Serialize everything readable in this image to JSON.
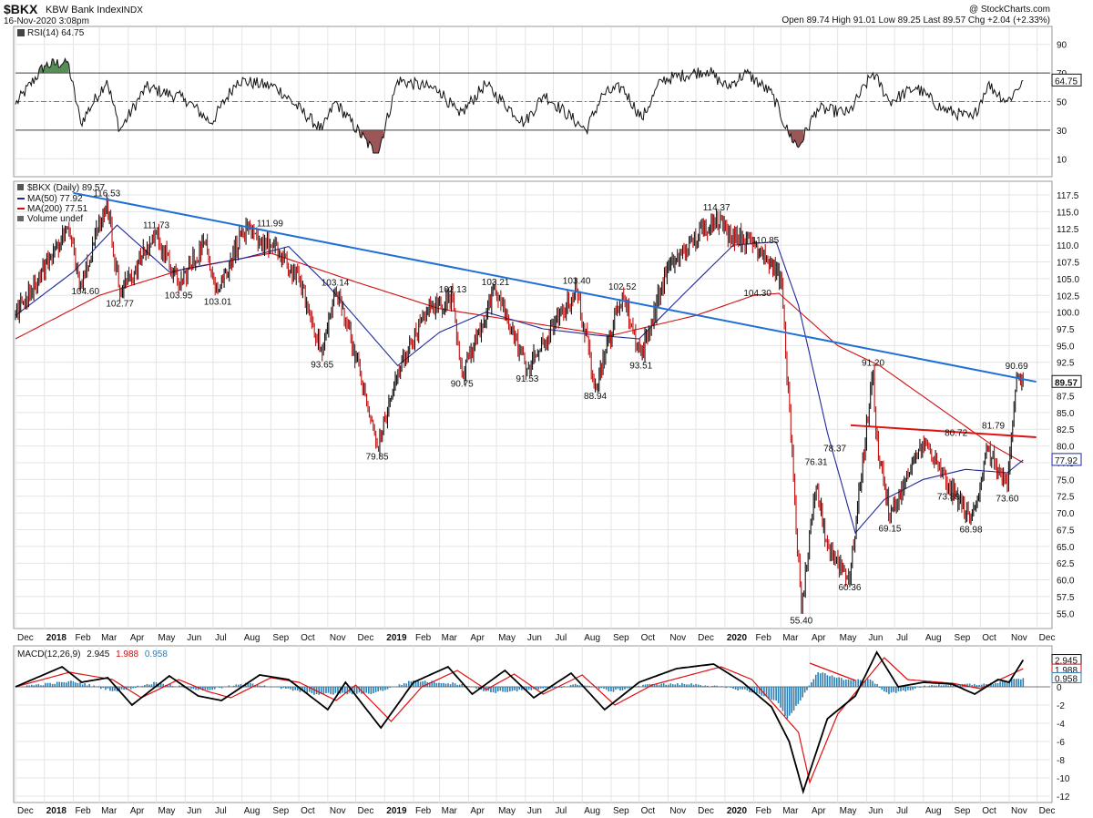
{
  "header": {
    "symbol": "$BKX",
    "name": "KBW Bank Index",
    "exchange": "INDX",
    "date": "16-Nov-2020 3:08pm",
    "watermark": "@ StockCharts.com",
    "quote": "Open 89.74  High 91.01  Low 89.25  Last 89.57  Chg +2.04 (+2.33%)"
  },
  "colors": {
    "price": "#000000",
    "ma50": "#1f2a9a",
    "ma200": "#d01010",
    "trend_blue": "#1f6fd6",
    "trend_red": "#e01010",
    "macd": "#000000",
    "signal": "#e01010",
    "hist": "#2a7fb4",
    "rsi_over": "#3a7a3a",
    "rsi_under": "#8a3a3a"
  },
  "chart_data": [
    {
      "type": "line",
      "panel": "rsi",
      "legend": "RSI(14) 64.75",
      "ylim": [
        0,
        100
      ],
      "yticks": [
        10,
        30,
        50,
        70,
        90
      ],
      "reference_lines": [
        30,
        50,
        70
      ],
      "last_value": "64.75",
      "series": [
        {
          "name": "RSI(14)",
          "x": [
            "2017-12-01",
            "2018-01-01",
            "2018-01-26",
            "2018-02-09",
            "2018-03-09",
            "2018-03-23",
            "2018-04-20",
            "2018-06-01",
            "2018-06-29",
            "2018-07-27",
            "2018-09-07",
            "2018-10-26",
            "2018-11-09",
            "2018-12-24",
            "2019-01-15",
            "2019-03-01",
            "2019-03-22",
            "2019-04-19",
            "2019-05-31",
            "2019-06-21",
            "2019-08-05",
            "2019-08-23",
            "2019-09-13",
            "2019-10-04",
            "2019-10-25",
            "2019-12-13",
            "2020-01-03",
            "2020-01-24",
            "2020-02-21",
            "2020-03-09",
            "2020-03-20",
            "2020-04-09",
            "2020-05-13",
            "2020-06-08",
            "2020-06-26",
            "2020-07-24",
            "2020-08-21",
            "2020-09-23",
            "2020-10-09",
            "2020-10-30",
            "2020-11-16"
          ],
          "values": [
            48,
            75,
            78,
            35,
            65,
            30,
            60,
            52,
            35,
            65,
            60,
            30,
            50,
            12,
            65,
            58,
            40,
            62,
            35,
            55,
            30,
            55,
            60,
            38,
            65,
            72,
            60,
            70,
            55,
            28,
            18,
            45,
            42,
            70,
            50,
            60,
            45,
            38,
            62,
            50,
            64.75
          ]
        }
      ]
    },
    {
      "type": "line",
      "panel": "price",
      "title": "$BKX (Daily) 89.57",
      "legend": [
        "$BKX (Daily) 89.57",
        "MA(50) 77.92",
        "MA(200) 77.51",
        "Volume undef"
      ],
      "ylim": [
        53,
        119
      ],
      "yticks": [
        55.0,
        57.5,
        60.0,
        62.5,
        65.0,
        67.5,
        70.0,
        72.5,
        75.0,
        77.5,
        80.0,
        82.5,
        85.0,
        87.5,
        90.0,
        92.5,
        95.0,
        97.5,
        100.0,
        102.5,
        105.0,
        107.5,
        110.0,
        112.5,
        115.0,
        117.5
      ],
      "price_markers": [
        "89.57",
        "77.92"
      ],
      "series": [
        {
          "name": "$BKX (Daily)",
          "x": [
            "2017-12-01",
            "2017-12-22",
            "2018-01-26",
            "2018-02-09",
            "2018-03-09",
            "2018-03-23",
            "2018-05-01",
            "2018-05-25",
            "2018-06-22",
            "2018-07-06",
            "2018-08-01",
            "2018-08-31",
            "2018-10-01",
            "2018-10-26",
            "2018-11-09",
            "2018-11-23",
            "2018-12-24",
            "2019-01-18",
            "2019-02-15",
            "2019-03-15",
            "2019-03-25",
            "2019-04-30",
            "2019-06-03",
            "2019-07-26",
            "2019-08-15",
            "2019-09-13",
            "2019-10-03",
            "2019-10-31",
            "2019-12-23",
            "2020-01-03",
            "2020-01-24",
            "2020-02-12",
            "2020-03-02",
            "2020-03-23",
            "2020-04-08",
            "2020-04-20",
            "2020-05-14",
            "2020-06-08",
            "2020-06-11",
            "2020-06-26",
            "2020-07-31",
            "2020-08-28",
            "2020-09-21",
            "2020-10-09",
            "2020-10-30",
            "2020-11-09",
            "2020-11-16"
          ],
          "values": [
            99.5,
            104.5,
            112.5,
            104.6,
            116.5,
            102.77,
            111.73,
            103.95,
            110.5,
            103.01,
            111.99,
            110.0,
            105.0,
            93.65,
            103.14,
            98.0,
            79.85,
            92.0,
            100.0,
            102.13,
            90.75,
            103.21,
            91.53,
            103.4,
            88.94,
            102.52,
            93.51,
            106.5,
            114.37,
            112.0,
            110.85,
            109.0,
            104.3,
            55.4,
            74.0,
            65.0,
            60.36,
            91.2,
            82.0,
            69.15,
            80.72,
            73.89,
            68.98,
            79.5,
            73.6,
            90.69,
            89.57
          ]
        },
        {
          "name": "MA(50)",
          "x": [
            "2017-12-01",
            "2018-02-01",
            "2018-03-20",
            "2018-05-15",
            "2018-08-01",
            "2018-09-20",
            "2018-11-01",
            "2019-01-15",
            "2019-03-01",
            "2019-04-20",
            "2019-06-20",
            "2019-08-20",
            "2019-10-01",
            "2019-11-20",
            "2020-01-10",
            "2020-02-25",
            "2020-03-20",
            "2020-04-20",
            "2020-05-20",
            "2020-06-20",
            "2020-08-01",
            "2020-09-15",
            "2020-10-30",
            "2020-11-16"
          ],
          "values": [
            99.5,
            106,
            113,
            106,
            108,
            109.8,
            104,
            92,
            97,
            100,
            97.5,
            96.5,
            96,
            103,
            110,
            110.5,
            101,
            82,
            67,
            72,
            75,
            76.5,
            76.0,
            77.92
          ]
        },
        {
          "name": "MA(200)",
          "x": [
            "2017-12-01",
            "2018-03-01",
            "2018-06-01",
            "2018-09-01",
            "2018-12-01",
            "2019-03-01",
            "2019-06-01",
            "2019-09-01",
            "2019-12-01",
            "2020-02-01",
            "2020-02-28",
            "2020-05-01",
            "2020-06-15",
            "2020-08-15",
            "2020-10-15",
            "2020-11-16"
          ],
          "values": [
            96,
            102.5,
            106.5,
            108.8,
            104.5,
            100.5,
            98.5,
            96.5,
            99.5,
            102.5,
            102.8,
            95,
            92,
            86,
            80,
            77.51
          ]
        },
        {
          "name": "Trend 1",
          "x": [
            "2018-02-01",
            "2020-11-30"
          ],
          "values": [
            117.8,
            89.6
          ]
        },
        {
          "name": "Trend 2",
          "x": [
            "2020-05-15",
            "2020-11-30"
          ],
          "values": [
            83.1,
            81.3
          ]
        }
      ],
      "annotations": [
        {
          "x": "2018-02-14",
          "y": 104.6,
          "text": "104.60",
          "pos": "below"
        },
        {
          "x": "2018-03-09",
          "y": 116.5,
          "text": "116.53",
          "pos": "above"
        },
        {
          "x": "2018-03-23",
          "y": 102.77,
          "text": "102.77",
          "pos": "below"
        },
        {
          "x": "2018-05-01",
          "y": 111.73,
          "text": "111.73",
          "pos": "above"
        },
        {
          "x": "2018-05-25",
          "y": 103.95,
          "text": "103.95",
          "pos": "below"
        },
        {
          "x": "2018-07-06",
          "y": 103.01,
          "text": "103.01",
          "pos": "below"
        },
        {
          "x": "2018-08-31",
          "y": 111.99,
          "text": "111.99",
          "pos": "above"
        },
        {
          "x": "2018-10-26",
          "y": 93.65,
          "text": "93.65",
          "pos": "below"
        },
        {
          "x": "2018-11-09",
          "y": 103.14,
          "text": "103.14",
          "pos": "above"
        },
        {
          "x": "2018-12-24",
          "y": 79.85,
          "text": "79.85",
          "pos": "below"
        },
        {
          "x": "2019-03-15",
          "y": 102.13,
          "text": "102.13",
          "pos": "above"
        },
        {
          "x": "2019-03-25",
          "y": 90.75,
          "text": "90.75",
          "pos": "below"
        },
        {
          "x": "2019-04-30",
          "y": 103.21,
          "text": "103.21",
          "pos": "above"
        },
        {
          "x": "2019-06-03",
          "y": 91.53,
          "text": "91.53",
          "pos": "below"
        },
        {
          "x": "2019-07-26",
          "y": 103.4,
          "text": "103.40",
          "pos": "above"
        },
        {
          "x": "2019-08-15",
          "y": 88.94,
          "text": "88.94",
          "pos": "below"
        },
        {
          "x": "2019-09-13",
          "y": 102.52,
          "text": "102.52",
          "pos": "above"
        },
        {
          "x": "2019-10-03",
          "y": 93.51,
          "text": "93.51",
          "pos": "below"
        },
        {
          "x": "2019-12-23",
          "y": 114.37,
          "text": "114.37",
          "pos": "above"
        },
        {
          "x": "2020-01-24",
          "y": 110.85,
          "text": "110.85",
          "pos": "right"
        },
        {
          "x": "2020-02-05",
          "y": 104.3,
          "text": "104.30",
          "pos": "below"
        },
        {
          "x": "2020-03-23",
          "y": 55.4,
          "text": "55.40",
          "pos": "below"
        },
        {
          "x": "2020-04-08",
          "y": 76.31,
          "text": "76.31",
          "pos": "above"
        },
        {
          "x": "2020-04-28",
          "y": 78.37,
          "text": "78.37",
          "pos": "above"
        },
        {
          "x": "2020-05-14",
          "y": 60.36,
          "text": "60.36",
          "pos": "below"
        },
        {
          "x": "2020-06-08",
          "y": 91.2,
          "text": "91.20",
          "pos": "above"
        },
        {
          "x": "2020-06-26",
          "y": 69.15,
          "text": "69.15",
          "pos": "below"
        },
        {
          "x": "2020-08-28",
          "y": 73.89,
          "text": "73.89",
          "pos": "below"
        },
        {
          "x": "2020-09-05",
          "y": 80.72,
          "text": "80.72",
          "pos": "above"
        },
        {
          "x": "2020-09-21",
          "y": 68.98,
          "text": "68.98",
          "pos": "below"
        },
        {
          "x": "2020-10-15",
          "y": 81.79,
          "text": "81.79",
          "pos": "above"
        },
        {
          "x": "2020-10-30",
          "y": 73.6,
          "text": "73.60",
          "pos": "below"
        },
        {
          "x": "2020-11-09",
          "y": 90.69,
          "text": "90.69",
          "pos": "above"
        }
      ]
    },
    {
      "type": "line",
      "panel": "macd",
      "legend": [
        "MACD(12,26,9)",
        "2.945",
        "1.988",
        "0.958"
      ],
      "ylim": [
        -12.5,
        4.2
      ],
      "yticks": [
        -12,
        -10,
        -8,
        -6,
        -4,
        -2,
        0
      ],
      "price_markers": [
        "2.945",
        "1.988",
        "0.958"
      ],
      "series": [
        {
          "name": "MACD",
          "x": [
            "2017-12-01",
            "2018-01-20",
            "2018-02-10",
            "2018-03-10",
            "2018-04-05",
            "2018-05-15",
            "2018-06-15",
            "2018-07-10",
            "2018-08-20",
            "2018-09-20",
            "2018-11-01",
            "2018-11-20",
            "2018-12-28",
            "2019-02-01",
            "2019-03-10",
            "2019-04-05",
            "2019-05-10",
            "2019-06-10",
            "2019-07-20",
            "2019-08-25",
            "2019-10-01",
            "2019-11-10",
            "2019-12-20",
            "2020-01-20",
            "2020-02-20",
            "2020-03-10",
            "2020-03-25",
            "2020-04-20",
            "2020-05-20",
            "2020-06-12",
            "2020-07-05",
            "2020-08-01",
            "2020-09-01",
            "2020-09-25",
            "2020-10-20",
            "2020-11-01",
            "2020-11-16"
          ],
          "values": [
            0,
            2.2,
            0.5,
            1.0,
            -2.0,
            1.2,
            -1.0,
            -1.5,
            1.3,
            0.8,
            -2.5,
            0.5,
            -4.5,
            0.5,
            2.2,
            -0.8,
            1.8,
            -1.2,
            1.5,
            -2.5,
            0.5,
            2.0,
            2.5,
            0.5,
            -2.2,
            -6.0,
            -11.5,
            -3.5,
            -1.0,
            3.8,
            0.0,
            0.5,
            0.3,
            -0.8,
            0.8,
            0.5,
            2.945
          ]
        },
        {
          "name": "Signal",
          "x": [
            "2017-12-01",
            "2018-01-28",
            "2018-03-15",
            "2018-04-15",
            "2018-05-25",
            "2018-06-25",
            "2018-07-20",
            "2018-09-01",
            "2018-10-01",
            "2018-11-10",
            "2018-12-01",
            "2019-01-08",
            "2019-02-10",
            "2019-03-20",
            "2019-04-20",
            "2019-05-20",
            "2019-06-20",
            "2019-08-01",
            "2019-09-05",
            "2019-10-15",
            "2019-12-28",
            "2020-01-30",
            "2020-03-20",
            "2020-04-01",
            "2020-05-01",
            "2020-06-20",
            "2020-07-15",
            "2020-09-01",
            "2020-10-01",
            "2020-11-16"
          ],
          "values": [
            0,
            1.6,
            0.8,
            -1.2,
            0.8,
            -0.5,
            -1.2,
            1.0,
            0.5,
            -1.5,
            0.2,
            -3.8,
            0.0,
            1.8,
            -0.3,
            1.4,
            -0.8,
            1.3,
            -2.0,
            0.2,
            2.2,
            0.8,
            -5,
            -10.5,
            -3.0,
            3.2,
            0.8,
            0.4,
            -0.2,
            1.988
          ]
        },
        {
          "name": "Histogram",
          "x": [
            "2017-12-01",
            "2018-02-01",
            "2018-03-20",
            "2018-05-01",
            "2018-06-20",
            "2018-08-10",
            "2018-10-20",
            "2018-12-20",
            "2019-02-01",
            "2019-03-25",
            "2019-04-25",
            "2019-06-15",
            "2019-08-01",
            "2019-09-01",
            "2019-10-15",
            "2019-12-01",
            "2020-01-25",
            "2020-02-25",
            "2020-03-08",
            "2020-03-22",
            "2020-04-10",
            "2020-05-10",
            "2020-06-05",
            "2020-06-25",
            "2020-08-10",
            "2020-10-10",
            "2020-11-16"
          ],
          "values": [
            0,
            0.6,
            -0.5,
            0.5,
            -0.4,
            0.4,
            -0.8,
            -0.7,
            0.7,
            0.3,
            -0.6,
            -0.3,
            0.3,
            -0.5,
            0.3,
            0.3,
            -0.4,
            -1.5,
            -3.5,
            -1.5,
            1.6,
            0.8,
            0.8,
            -0.8,
            0.2,
            0.3,
            0.958
          ]
        },
        {
          "name": "Divergence",
          "x": [
            "2020-04-01",
            "2020-05-20"
          ],
          "values": [
            2.6,
            0.7
          ]
        }
      ]
    }
  ],
  "x_axis": {
    "labels": [
      "Dec",
      "2018",
      "Feb",
      "Mar",
      "Apr",
      "May",
      "Jun",
      "Jul",
      "Aug",
      "Sep",
      "Oct",
      "Nov",
      "Dec",
      "2019",
      "Feb",
      "Mar",
      "Apr",
      "May",
      "Jun",
      "Jul",
      "Aug",
      "Sep",
      "Oct",
      "Nov",
      "Dec",
      "2020",
      "Feb",
      "Mar",
      "Apr",
      "May",
      "Jun",
      "Jul",
      "Aug",
      "Sep",
      "Oct",
      "Nov",
      "Dec"
    ],
    "dates": [
      "2017-12-01",
      "2018-01-01",
      "2018-02-01",
      "2018-03-01",
      "2018-04-01",
      "2018-05-01",
      "2018-06-01",
      "2018-07-01",
      "2018-08-01",
      "2018-09-01",
      "2018-10-01",
      "2018-11-01",
      "2018-12-01",
      "2019-01-01",
      "2019-02-01",
      "2019-03-01",
      "2019-04-01",
      "2019-05-01",
      "2019-06-01",
      "2019-07-01",
      "2019-08-01",
      "2019-09-01",
      "2019-10-01",
      "2019-11-01",
      "2019-12-01",
      "2020-01-01",
      "2020-02-01",
      "2020-03-01",
      "2020-04-01",
      "2020-05-01",
      "2020-06-01",
      "2020-07-01",
      "2020-08-01",
      "2020-09-01",
      "2020-10-01",
      "2020-11-01",
      "2020-12-01"
    ],
    "bold_labels": [
      "2018",
      "2019",
      "2020"
    ]
  }
}
